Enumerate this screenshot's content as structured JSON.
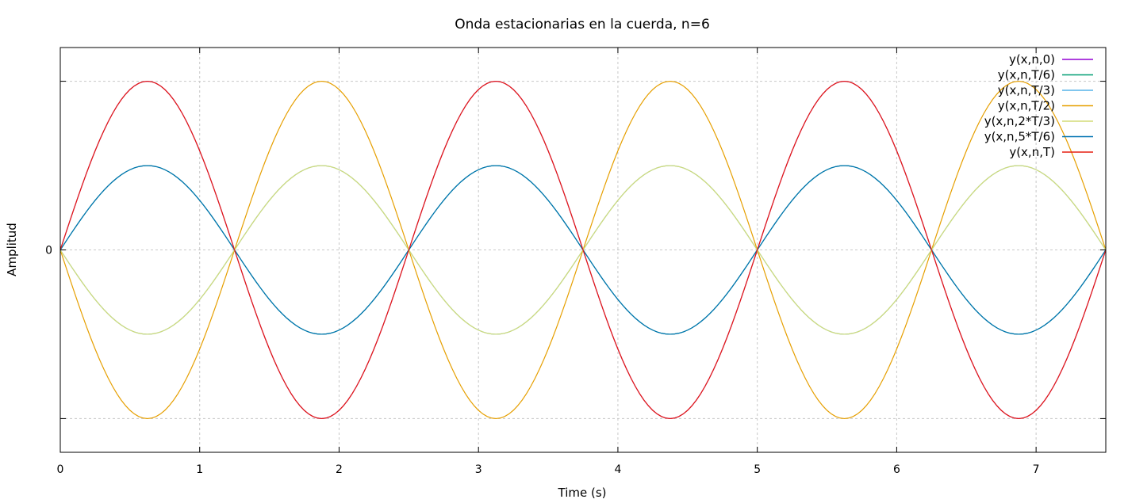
{
  "chart_data": {
    "type": "line",
    "title": "Onda estacionarias en la cuerda, n=6",
    "xlabel": "Time (s)",
    "ylabel": "Amplitud",
    "xlim": [
      0,
      7.5
    ],
    "ylim": [
      -1.2,
      1.2
    ],
    "xticks": [
      0,
      1,
      2,
      3,
      4,
      5,
      6,
      7
    ],
    "xtick_labels": [
      "0",
      "1",
      "2",
      "3",
      "4",
      "5",
      "6",
      "7"
    ],
    "yticks": [
      -1,
      0,
      1
    ],
    "ytick_labels": [
      "",
      "0",
      ""
    ],
    "grid": true,
    "legend_position": "top-right",
    "function": "y = A * sin(2*pi*x/2.5)",
    "wavelength": 2.5,
    "series": [
      {
        "name": "y(x,n,0)",
        "color": "#9400d3",
        "amplitude": 1.0
      },
      {
        "name": "y(x,n,T/6)",
        "color": "#009e73",
        "amplitude": 0.5
      },
      {
        "name": "y(x,n,T/3)",
        "color": "#56b4e9",
        "amplitude": -0.5
      },
      {
        "name": "y(x,n,T/2)",
        "color": "#e69f00",
        "amplitude": -1.0
      },
      {
        "name": "y(x,n,2*T/3)",
        "color": "#d4dc76",
        "amplitude": -0.5
      },
      {
        "name": "y(x,n,5*T/6)",
        "color": "#0072b2",
        "amplitude": 0.5
      },
      {
        "name": "y(x,n,T)",
        "color": "#e51e10",
        "amplitude": 1.0
      }
    ]
  }
}
